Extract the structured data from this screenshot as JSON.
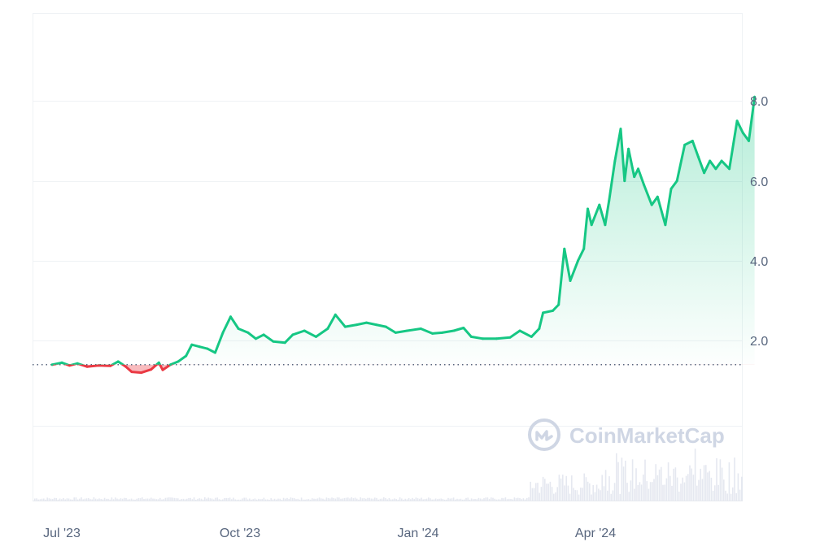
{
  "brand": {
    "watermark": "CoinMarketCap",
    "up_color": "#16c784",
    "down_color": "#ea3943",
    "baseline_color": "#58667e",
    "grid_color": "#eff2f5",
    "volume_color": "#cfd6e4"
  },
  "chart_data": {
    "type": "line",
    "title": "",
    "xlabel": "",
    "ylabel": "",
    "x_tick_labels": [
      "Jul '23",
      "Oct '23",
      "Jan '24",
      "Apr '24"
    ],
    "y_tick_labels": [
      "2.0",
      "4.0",
      "6.0",
      "8.0"
    ],
    "y_ticks": [
      2,
      4,
      6,
      8
    ],
    "ylim": [
      -2,
      10.2
    ],
    "baseline_value": 1.4,
    "grid": true,
    "legend": "none",
    "series": [
      {
        "points": [
          [
            "2023-06-26",
            1.4
          ],
          [
            "2023-07-01",
            1.45
          ],
          [
            "2023-07-05",
            1.38
          ],
          [
            "2023-07-09",
            1.43
          ],
          [
            "2023-07-14",
            1.35
          ],
          [
            "2023-07-20",
            1.38
          ],
          [
            "2023-07-26",
            1.37
          ],
          [
            "2023-07-30",
            1.48
          ],
          [
            "2023-08-03",
            1.35
          ],
          [
            "2023-08-06",
            1.22
          ],
          [
            "2023-08-11",
            1.2
          ],
          [
            "2023-08-16",
            1.28
          ],
          [
            "2023-08-20",
            1.45
          ],
          [
            "2023-08-22",
            1.27
          ],
          [
            "2023-08-26",
            1.4
          ],
          [
            "2023-08-30",
            1.48
          ],
          [
            "2023-09-03",
            1.62
          ],
          [
            "2023-09-06",
            1.9
          ],
          [
            "2023-09-10",
            1.85
          ],
          [
            "2023-09-14",
            1.8
          ],
          [
            "2023-09-18",
            1.7
          ],
          [
            "2023-09-22",
            2.2
          ],
          [
            "2023-09-26",
            2.6
          ],
          [
            "2023-09-30",
            2.3
          ],
          [
            "2023-10-05",
            2.2
          ],
          [
            "2023-10-09",
            2.05
          ],
          [
            "2023-10-13",
            2.15
          ],
          [
            "2023-10-18",
            1.98
          ],
          [
            "2023-10-24",
            1.95
          ],
          [
            "2023-10-28",
            2.15
          ],
          [
            "2023-11-03",
            2.25
          ],
          [
            "2023-11-09",
            2.1
          ],
          [
            "2023-11-15",
            2.3
          ],
          [
            "2023-11-19",
            2.65
          ],
          [
            "2023-11-24",
            2.35
          ],
          [
            "2023-11-30",
            2.4
          ],
          [
            "2023-12-05",
            2.45
          ],
          [
            "2023-12-10",
            2.4
          ],
          [
            "2023-12-15",
            2.35
          ],
          [
            "2023-12-20",
            2.2
          ],
          [
            "2023-12-26",
            2.25
          ],
          [
            "2024-01-02",
            2.3
          ],
          [
            "2024-01-08",
            2.18
          ],
          [
            "2024-01-13",
            2.2
          ],
          [
            "2024-01-19",
            2.25
          ],
          [
            "2024-01-24",
            2.32
          ],
          [
            "2024-01-28",
            2.1
          ],
          [
            "2024-02-03",
            2.05
          ],
          [
            "2024-02-10",
            2.05
          ],
          [
            "2024-02-17",
            2.08
          ],
          [
            "2024-02-22",
            2.25
          ],
          [
            "2024-02-28",
            2.1
          ],
          [
            "2024-03-03",
            2.3
          ],
          [
            "2024-03-05",
            2.7
          ],
          [
            "2024-03-10",
            2.75
          ],
          [
            "2024-03-13",
            2.9
          ],
          [
            "2024-03-16",
            4.3
          ],
          [
            "2024-03-19",
            3.5
          ],
          [
            "2024-03-23",
            4.0
          ],
          [
            "2024-03-26",
            4.3
          ],
          [
            "2024-03-28",
            5.3
          ],
          [
            "2024-03-30",
            4.9
          ],
          [
            "2024-04-03",
            5.4
          ],
          [
            "2024-04-06",
            4.9
          ],
          [
            "2024-04-08",
            5.5
          ],
          [
            "2024-04-11",
            6.5
          ],
          [
            "2024-04-14",
            7.3
          ],
          [
            "2024-04-16",
            6.0
          ],
          [
            "2024-04-18",
            6.8
          ],
          [
            "2024-04-21",
            6.1
          ],
          [
            "2024-04-23",
            6.3
          ],
          [
            "2024-04-26",
            5.9
          ],
          [
            "2024-04-30",
            5.4
          ],
          [
            "2024-05-03",
            5.6
          ],
          [
            "2024-05-07",
            4.9
          ],
          [
            "2024-05-10",
            5.8
          ],
          [
            "2024-05-13",
            6.0
          ],
          [
            "2024-05-17",
            6.9
          ],
          [
            "2024-05-21",
            7.0
          ],
          [
            "2024-05-24",
            6.6
          ],
          [
            "2024-05-27",
            6.2
          ],
          [
            "2024-05-30",
            6.5
          ],
          [
            "2024-06-02",
            6.3
          ],
          [
            "2024-06-05",
            6.5
          ],
          [
            "2024-06-09",
            6.3
          ],
          [
            "2024-06-13",
            7.5
          ],
          [
            "2024-06-16",
            7.2
          ],
          [
            "2024-06-19",
            7.0
          ],
          [
            "2024-06-22",
            8.1
          ]
        ]
      }
    ]
  }
}
